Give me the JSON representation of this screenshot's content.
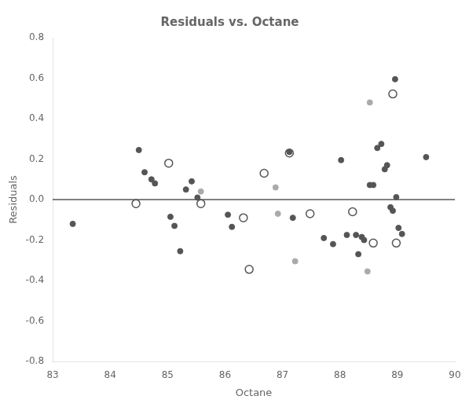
{
  "chart_data": {
    "type": "scatter",
    "title": "Residuals vs. Octane",
    "xlabel": "Octane",
    "ylabel": "Residuals",
    "xlim": [
      83,
      90
    ],
    "ylim": [
      -0.8,
      0.8
    ],
    "xticks": [
      83,
      84,
      85,
      86,
      87,
      88,
      89,
      90
    ],
    "yticks": [
      -0.8,
      -0.6,
      -0.4,
      -0.2,
      {
        "value": 0,
        "label": "0.0"
      },
      0.2,
      0.4,
      0.6,
      0.8
    ],
    "grid": false,
    "hline": {
      "value": 0,
      "color": "#000000"
    },
    "series": [
      {
        "color": "#555555",
        "marker": "circle",
        "x": [
          83.35,
          84.5,
          84.6,
          84.72,
          84.78,
          85.05,
          85.12,
          85.22,
          85.32,
          85.42,
          85.52,
          86.05,
          86.12,
          87.12,
          87.18,
          87.72,
          87.88,
          88.02,
          88.12,
          88.32,
          88.42,
          88.52,
          88.58,
          88.65,
          88.72,
          88.78,
          88.82,
          88.88,
          88.92,
          88.96,
          88.98,
          89.02,
          89.08,
          89.5,
          88.28,
          88.38
        ],
        "values": [
          -0.12,
          0.245,
          0.135,
          0.1,
          0.08,
          -0.085,
          -0.13,
          -0.255,
          0.05,
          0.09,
          0.01,
          -0.075,
          -0.135,
          0.235,
          -0.09,
          -0.19,
          -0.22,
          0.195,
          -0.175,
          -0.27,
          -0.2,
          0.072,
          0.072,
          0.255,
          0.275,
          0.15,
          0.17,
          -0.038,
          -0.055,
          0.595,
          0.012,
          -0.14,
          -0.17,
          0.21,
          -0.175,
          -0.185
        ]
      },
      {
        "color": "#aaaaaa",
        "marker": "circle",
        "x": [
          85.58,
          86.88,
          86.92,
          87.22,
          88.48,
          88.52
        ],
        "values": [
          0.04,
          0.06,
          -0.07,
          -0.305,
          -0.355,
          0.48
        ]
      },
      {
        "color": "#555555",
        "marker": "open_circle",
        "x": [
          84.45,
          85.02,
          85.58,
          86.32,
          86.42,
          86.68,
          87.12,
          87.48,
          88.22,
          88.58,
          88.92,
          88.98
        ],
        "values": [
          -0.02,
          0.18,
          -0.02,
          -0.09,
          -0.345,
          0.13,
          0.23,
          -0.07,
          -0.06,
          -0.215,
          0.522,
          -0.215
        ]
      }
    ]
  }
}
